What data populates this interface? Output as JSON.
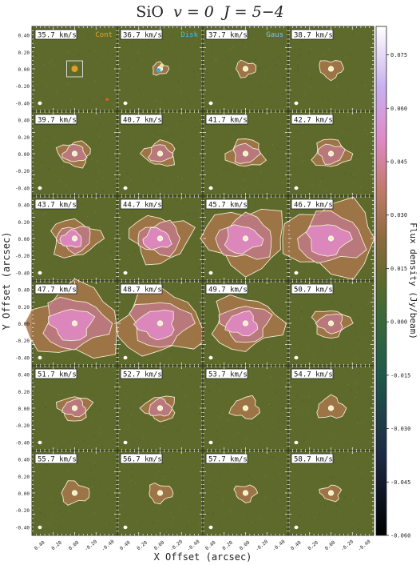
{
  "title": {
    "species": "SiO",
    "v_part": "v = 0",
    "j_part": "J = 5−4"
  },
  "chart_data": {
    "type": "heatmap",
    "title": "SiO  v = 0  J = 5−4",
    "xlabel": "X Offset (arcsec)",
    "ylabel": "Y Offset (arcsec)",
    "colorbar_label": "Flux density (Jy/beam)",
    "colorbar_ticks": [
      "0.075",
      "0.060",
      "0.045",
      "0.030",
      "0.015",
      "0.000",
      "-0.015",
      "-0.030",
      "-0.045",
      "-0.060"
    ],
    "colorbar_range": [
      -0.06,
      0.083
    ],
    "y_ticks": [
      "0.40",
      "0.20",
      "0.00",
      "-0.20",
      "-0.40"
    ],
    "x_ticks": [
      "0.40",
      "0.20",
      "0.00",
      "-0.20",
      "-0.40"
    ],
    "xlim": [
      0.5,
      -0.5
    ],
    "ylim": [
      -0.5,
      0.5
    ],
    "grid": {
      "rows": 6,
      "cols": 4
    },
    "legend_labels": [
      "Cont",
      "Disk",
      "Gaus"
    ],
    "channels": [
      {
        "label": "35.7 km/s",
        "emission": 0.0
      },
      {
        "label": "36.7 km/s",
        "emission": 0.05
      },
      {
        "label": "37.7 km/s",
        "emission": 0.1
      },
      {
        "label": "38.7 km/s",
        "emission": 0.15
      },
      {
        "label": "39.7 km/s",
        "emission": 0.25
      },
      {
        "label": "40.7 km/s",
        "emission": 0.25
      },
      {
        "label": "41.7 km/s",
        "emission": 0.3
      },
      {
        "label": "42.7 km/s",
        "emission": 0.3
      },
      {
        "label": "43.7 km/s",
        "emission": 0.45
      },
      {
        "label": "44.7 km/s",
        "emission": 0.6
      },
      {
        "label": "45.7 km/s",
        "emission": 0.85
      },
      {
        "label": "46.7 km/s",
        "emission": 1.0
      },
      {
        "label": "47.7 km/s",
        "emission": 1.0
      },
      {
        "label": "48.7 km/s",
        "emission": 0.9
      },
      {
        "label": "49.7 km/s",
        "emission": 0.7
      },
      {
        "label": "50.7 km/s",
        "emission": 0.3
      },
      {
        "label": "51.7 km/s",
        "emission": 0.25
      },
      {
        "label": "52.7 km/s",
        "emission": 0.25
      },
      {
        "label": "53.7 km/s",
        "emission": 0.2
      },
      {
        "label": "54.7 km/s",
        "emission": 0.2
      },
      {
        "label": "55.7 km/s",
        "emission": 0.2
      },
      {
        "label": "56.7 km/s",
        "emission": 0.15
      },
      {
        "label": "57.7 km/s",
        "emission": 0.12
      },
      {
        "label": "58.7 km/s",
        "emission": 0.1
      }
    ]
  },
  "colors": {
    "background": "#5e6a2c",
    "contour": "#f2ead0",
    "emission_low": "#a8764a",
    "emission_high": "#e08ac8",
    "cont_marker": "#e0a020",
    "disk_marker": "#30b0e0",
    "label_cont": "#f0a020",
    "label_disk": "#40c0f0",
    "label_gaus": "#70c8f0"
  }
}
